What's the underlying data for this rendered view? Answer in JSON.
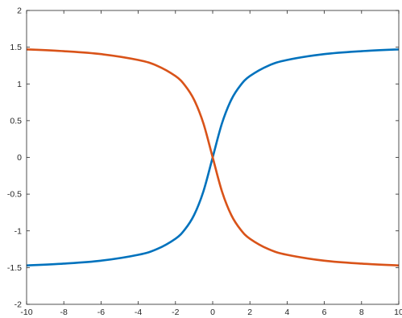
{
  "chart_data": {
    "type": "line",
    "title": "",
    "xlabel": "",
    "ylabel": "",
    "xlim": [
      -10,
      10
    ],
    "ylim": [
      -2,
      2
    ],
    "grid": false,
    "box": true,
    "x_ticks": [
      -10,
      -8,
      -6,
      -4,
      -2,
      0,
      2,
      4,
      6,
      8,
      10
    ],
    "x_tick_labels": [
      "-10",
      "-8",
      "-6",
      "-4",
      "-2",
      "0",
      "2",
      "4",
      "6",
      "8",
      "10"
    ],
    "y_ticks": [
      -2,
      -1.5,
      -1,
      -0.5,
      0,
      0.5,
      1,
      1.5,
      2
    ],
    "y_tick_labels": [
      "-2",
      "-1.5",
      "-1",
      "-0.5",
      "0",
      "0.5",
      "1",
      "1.5",
      "2"
    ],
    "x": [
      -10,
      -8,
      -6,
      -4,
      -3,
      -2,
      -1.5,
      -1,
      -0.5,
      0,
      0.5,
      1,
      1.5,
      2,
      3,
      4,
      6,
      8,
      10
    ],
    "series": [
      {
        "color": "#0072BD",
        "values": [
          -1.471,
          -1.446,
          -1.406,
          -1.326,
          -1.249,
          -1.107,
          -0.983,
          -0.785,
          -0.464,
          0,
          0.464,
          0.785,
          0.983,
          1.107,
          1.249,
          1.326,
          1.406,
          1.446,
          1.471
        ]
      },
      {
        "color": "#D95319",
        "values": [
          1.471,
          1.446,
          1.406,
          1.326,
          1.249,
          1.107,
          0.983,
          0.785,
          0.464,
          0,
          -0.464,
          -0.785,
          -0.983,
          -1.107,
          -1.249,
          -1.326,
          -1.406,
          -1.446,
          -1.471
        ]
      }
    ]
  }
}
